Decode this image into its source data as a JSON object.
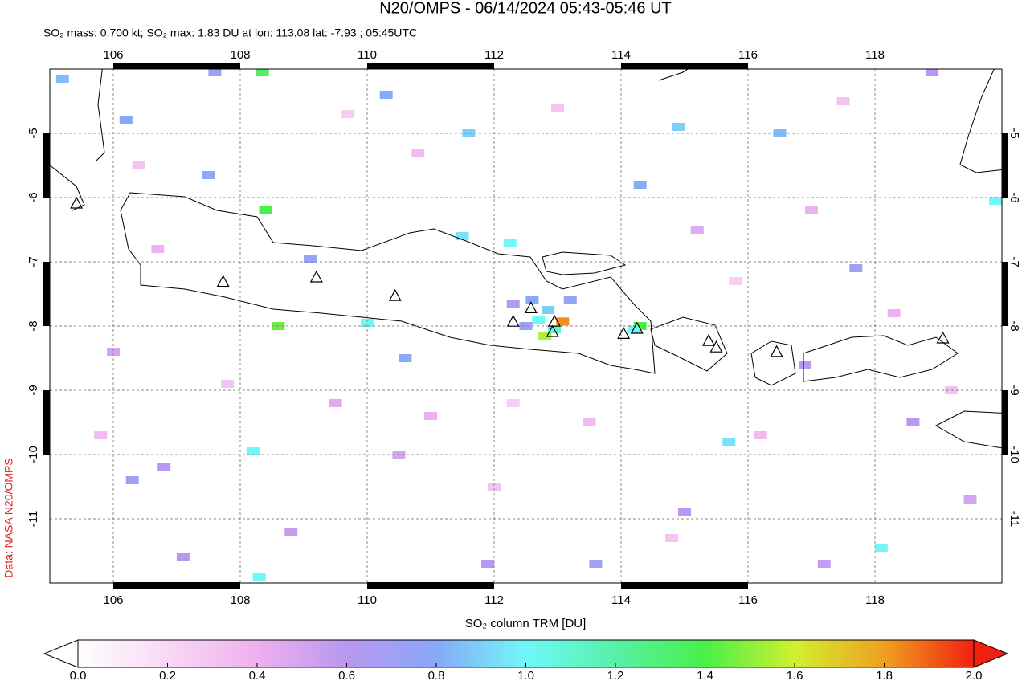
{
  "chart_data": {
    "type": "map",
    "title": "N20/OMPS - 06/14/2024 05:43-05:46 UT",
    "subtitle": "SO₂ mass: 0.700 kt; SO₂ max: 1.83 DU at lon: 113.08 lat: -7.93 ; 05:45UTC",
    "source": "Data: NASA N20/OMPS",
    "xlim": [
      105,
      120
    ],
    "ylim": [
      -12,
      -4
    ],
    "xticks": [
      106,
      108,
      110,
      112,
      114,
      116,
      118
    ],
    "yticks": [
      -5,
      -6,
      -7,
      -8,
      -9,
      -10,
      -11
    ],
    "grid": true,
    "cells": {
      "x": [
        113.08,
        112.8,
        112.95,
        112.7,
        112.85,
        112.6,
        113.2,
        112.5,
        112.3,
        114.3,
        114.2,
        108.4,
        108.6,
        108.35,
        110.0,
        112.25,
        111.5,
        108.2,
        108.3,
        118.1,
        115.7,
        119.9,
        105.2,
        107.6,
        109.1,
        106.2,
        107.5,
        110.3,
        111.6,
        114.3,
        114.9,
        116.5,
        118.9,
        110.6,
        116.9,
        117.7,
        106.0,
        106.3,
        106.8,
        107.1,
        108.8,
        110.5,
        111.9,
        113.6,
        115.0,
        117.2,
        118.6,
        119.5,
        109.5,
        111.0,
        113.5,
        115.2,
        117.0,
        106.7,
        105.8,
        107.8,
        112.0,
        114.8,
        116.2,
        118.3,
        119.2,
        110.8,
        113.0,
        106.4,
        109.7,
        115.8,
        117.5,
        112.3
      ],
      "y": [
        -7.93,
        -8.15,
        -8.05,
        -7.9,
        -7.75,
        -7.6,
        -7.6,
        -8.0,
        -7.65,
        -8.0,
        -8.05,
        -6.2,
        -8.0,
        -4.05,
        -7.95,
        -6.7,
        -6.6,
        -9.95,
        -11.9,
        -11.45,
        -9.8,
        -6.05,
        -4.15,
        -4.05,
        -6.95,
        -4.8,
        -5.65,
        -4.4,
        -5.0,
        -5.8,
        -4.9,
        -5.0,
        -4.05,
        -8.5,
        -8.6,
        -7.1,
        -8.4,
        -10.4,
        -10.2,
        -11.6,
        -11.2,
        -10.0,
        -11.7,
        -11.7,
        -10.9,
        -11.7,
        -9.5,
        -10.7,
        -9.2,
        -9.4,
        -9.5,
        -6.5,
        -6.2,
        -6.8,
        -9.7,
        -8.9,
        -10.5,
        -11.3,
        -9.7,
        -7.8,
        -9.0,
        -5.3,
        -4.6,
        -5.5,
        -4.7,
        -7.3,
        -4.5,
        -9.2
      ],
      "values": [
        1.83,
        1.55,
        1.1,
        1.0,
        0.9,
        0.8,
        0.75,
        0.7,
        0.65,
        1.4,
        1.0,
        1.4,
        1.45,
        1.35,
        1.0,
        1.0,
        0.95,
        1.0,
        1.0,
        1.0,
        0.95,
        1.0,
        0.85,
        0.7,
        0.75,
        0.8,
        0.75,
        0.8,
        0.9,
        0.8,
        0.9,
        0.85,
        0.6,
        0.8,
        0.6,
        0.7,
        0.5,
        0.7,
        0.6,
        0.6,
        0.55,
        0.5,
        0.6,
        0.7,
        0.6,
        0.55,
        0.6,
        0.5,
        0.45,
        0.4,
        0.35,
        0.45,
        0.4,
        0.4,
        0.35,
        0.3,
        0.3,
        0.3,
        0.35,
        0.4,
        0.3,
        0.35,
        0.3,
        0.3,
        0.25,
        0.25,
        0.3,
        0.25
      ]
    },
    "volcanoes": {
      "x": [
        105.42,
        107.73,
        109.2,
        110.44,
        112.3,
        112.58,
        112.95,
        112.92,
        114.04,
        114.25,
        115.38,
        115.5,
        116.45,
        119.07
      ],
      "y": [
        -6.1,
        -7.32,
        -7.25,
        -7.54,
        -7.94,
        -7.73,
        -7.94,
        -8.1,
        -8.13,
        -8.05,
        -8.24,
        -8.34,
        -8.41,
        -8.2
      ]
    },
    "colorbar": {
      "label": "SO₂ column TRM [DU]",
      "lim": [
        0,
        2
      ],
      "ticks": [
        {
          "value": 0,
          "label": "0.0"
        },
        {
          "value": 0.2,
          "label": "0.2"
        },
        {
          "value": 0.4,
          "label": "0.4"
        },
        {
          "value": 0.6,
          "label": "0.6"
        },
        {
          "value": 0.8,
          "label": "0.8"
        },
        {
          "value": 1,
          "label": "1.0"
        },
        {
          "value": 1.2,
          "label": "1.2"
        },
        {
          "value": 1.4,
          "label": "1.4"
        },
        {
          "value": 1.6,
          "label": "1.6"
        },
        {
          "value": 1.8,
          "label": "1.8"
        },
        {
          "value": 2,
          "label": "2.0"
        }
      ],
      "colors": [
        "#ffffff",
        "#f8d8f4",
        "#eeb0ee",
        "#b898f0",
        "#88a8f8",
        "#70f8f8",
        "#58f0a8",
        "#48f048",
        "#d0f030",
        "#f0a020",
        "#f02010"
      ]
    }
  }
}
